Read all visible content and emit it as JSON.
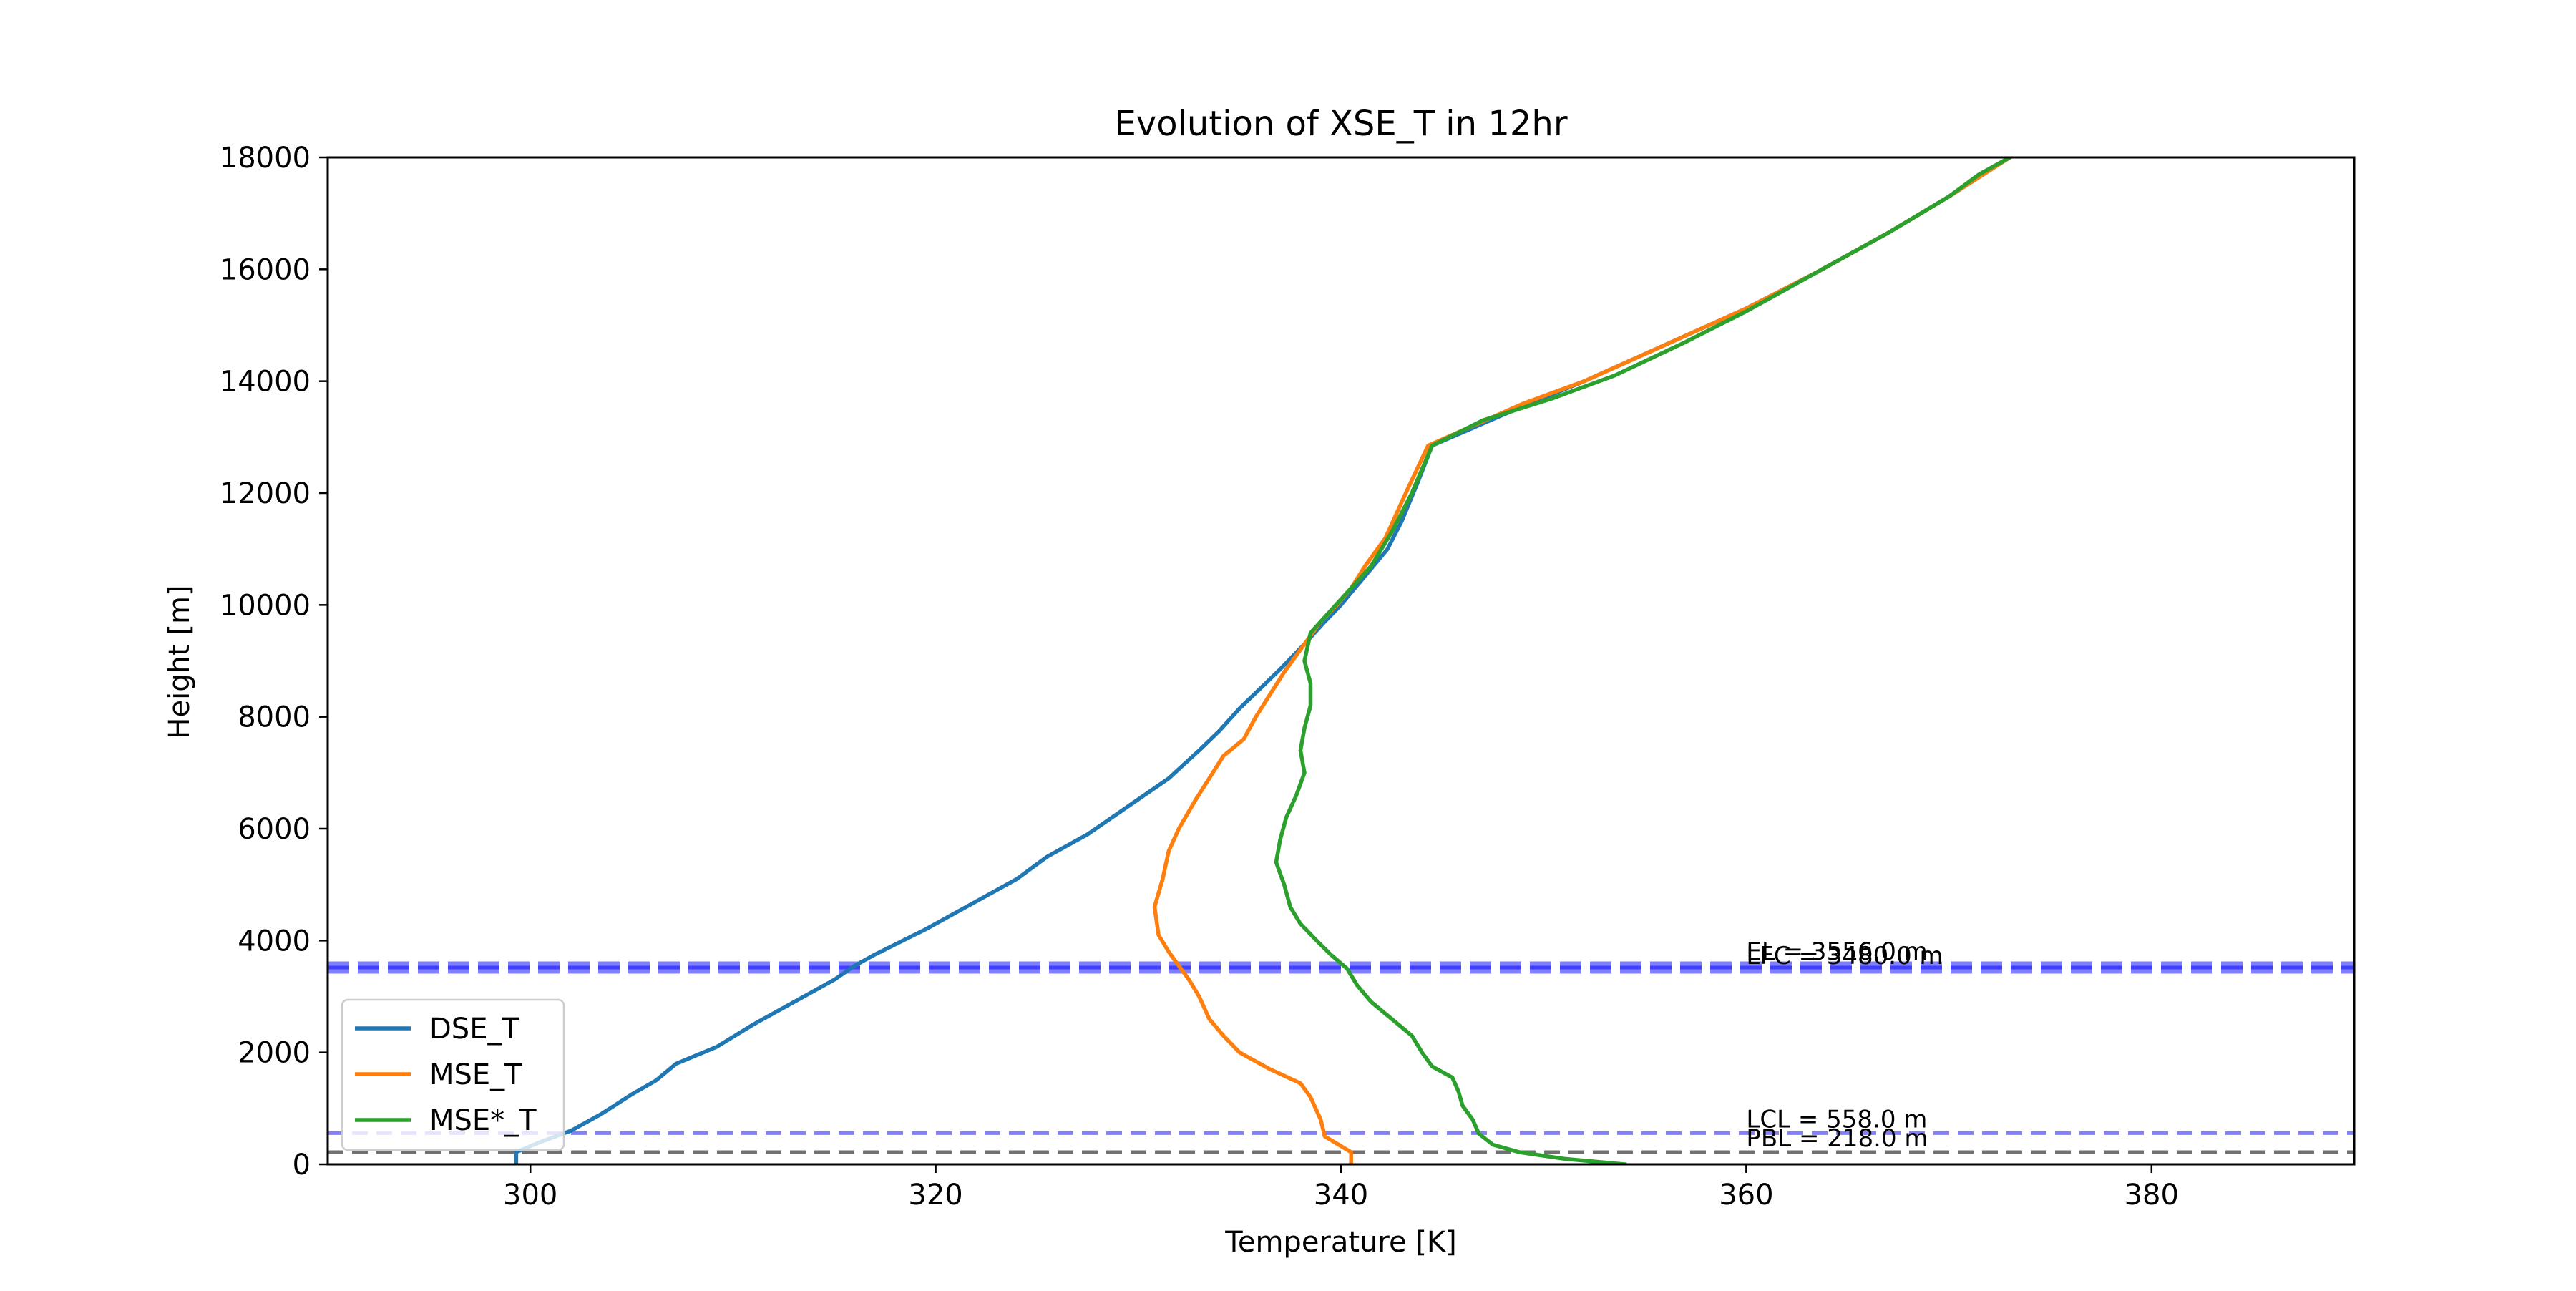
{
  "chart_data": {
    "type": "line",
    "title": "Evolution of XSE_T in 12hr",
    "xlabel": "Temperature [K]",
    "ylabel": "Height [m]",
    "xlim": [
      290,
      390
    ],
    "ylim": [
      0,
      18000
    ],
    "xticks": [
      300,
      320,
      340,
      360,
      380
    ],
    "yticks": [
      0,
      2000,
      4000,
      6000,
      8000,
      10000,
      12000,
      14000,
      16000,
      18000
    ],
    "grid": false,
    "legend_position": "lower left",
    "series": [
      {
        "name": "DSE_T",
        "color": "#1f77b4",
        "points": [
          [
            299.3,
            0
          ],
          [
            299.3,
            218
          ],
          [
            300.5,
            400
          ],
          [
            302.0,
            600
          ],
          [
            303.5,
            900
          ],
          [
            305.0,
            1250
          ],
          [
            306.2,
            1500
          ],
          [
            307.2,
            1800
          ],
          [
            309.2,
            2100
          ],
          [
            311.0,
            2500
          ],
          [
            313.0,
            2900
          ],
          [
            315.0,
            3300
          ],
          [
            316.0,
            3550
          ],
          [
            317.0,
            3750
          ],
          [
            319.5,
            4200
          ],
          [
            322.0,
            4700
          ],
          [
            324.0,
            5100
          ],
          [
            325.5,
            5500
          ],
          [
            327.5,
            5900
          ],
          [
            329.5,
            6400
          ],
          [
            331.5,
            6900
          ],
          [
            333.0,
            7400
          ],
          [
            334.0,
            7750
          ],
          [
            335.0,
            8150
          ],
          [
            336.0,
            8500
          ],
          [
            337.0,
            8850
          ],
          [
            338.2,
            9300
          ],
          [
            339.2,
            9700
          ],
          [
            340.0,
            10000
          ],
          [
            340.8,
            10350
          ],
          [
            341.5,
            10650
          ],
          [
            342.3,
            11000
          ],
          [
            343.0,
            11500
          ],
          [
            343.8,
            12200
          ],
          [
            344.5,
            12850
          ],
          [
            348.0,
            13400
          ],
          [
            352.0,
            14000
          ],
          [
            356.0,
            14650
          ],
          [
            360.0,
            15300
          ],
          [
            363.5,
            15950
          ],
          [
            367.0,
            16650
          ],
          [
            370.0,
            17300
          ],
          [
            373.0,
            18000
          ]
        ]
      },
      {
        "name": "MSE_T",
        "color": "#ff7f0e",
        "points": [
          [
            340.5,
            0
          ],
          [
            340.5,
            218
          ],
          [
            339.2,
            500
          ],
          [
            339.0,
            800
          ],
          [
            338.5,
            1200
          ],
          [
            338.0,
            1450
          ],
          [
            336.5,
            1700
          ],
          [
            335.0,
            2000
          ],
          [
            334.2,
            2300
          ],
          [
            333.5,
            2600
          ],
          [
            333.0,
            3000
          ],
          [
            332.5,
            3300
          ],
          [
            332.0,
            3550
          ],
          [
            331.5,
            3800
          ],
          [
            331.0,
            4100
          ],
          [
            330.8,
            4600
          ],
          [
            331.2,
            5100
          ],
          [
            331.5,
            5600
          ],
          [
            332.0,
            6000
          ],
          [
            332.8,
            6500
          ],
          [
            333.5,
            6900
          ],
          [
            334.2,
            7300
          ],
          [
            335.2,
            7600
          ],
          [
            335.8,
            8000
          ],
          [
            336.5,
            8400
          ],
          [
            337.2,
            8800
          ],
          [
            338.2,
            9300
          ],
          [
            339.0,
            9700
          ],
          [
            339.8,
            10000
          ],
          [
            340.5,
            10300
          ],
          [
            341.2,
            10700
          ],
          [
            342.2,
            11200
          ],
          [
            343.2,
            12000
          ],
          [
            344.3,
            12850
          ],
          [
            349.0,
            13600
          ],
          [
            352.0,
            14000
          ],
          [
            356.0,
            14650
          ],
          [
            360.0,
            15300
          ],
          [
            363.5,
            15950
          ],
          [
            367.0,
            16650
          ],
          [
            370.0,
            17300
          ],
          [
            373.0,
            18000
          ]
        ]
      },
      {
        "name": "MSE*_T",
        "color": "#2ca02c",
        "points": [
          [
            354.0,
            0
          ],
          [
            351.0,
            100
          ],
          [
            348.8,
            218
          ],
          [
            347.5,
            350
          ],
          [
            346.8,
            550
          ],
          [
            346.5,
            800
          ],
          [
            346.0,
            1050
          ],
          [
            345.8,
            1300
          ],
          [
            345.5,
            1550
          ],
          [
            344.5,
            1750
          ],
          [
            344.0,
            2000
          ],
          [
            343.5,
            2300
          ],
          [
            342.5,
            2600
          ],
          [
            341.5,
            2900
          ],
          [
            340.8,
            3200
          ],
          [
            340.3,
            3500
          ],
          [
            339.5,
            3750
          ],
          [
            338.8,
            4000
          ],
          [
            338.0,
            4300
          ],
          [
            337.5,
            4600
          ],
          [
            337.2,
            5000
          ],
          [
            336.8,
            5400
          ],
          [
            337.0,
            5800
          ],
          [
            337.3,
            6200
          ],
          [
            337.8,
            6600
          ],
          [
            338.2,
            7000
          ],
          [
            338.0,
            7400
          ],
          [
            338.2,
            7800
          ],
          [
            338.5,
            8200
          ],
          [
            338.5,
            8600
          ],
          [
            338.2,
            9000
          ],
          [
            338.5,
            9500
          ],
          [
            339.5,
            9900
          ],
          [
            340.5,
            10300
          ],
          [
            341.5,
            10700
          ],
          [
            342.5,
            11300
          ],
          [
            343.5,
            12000
          ],
          [
            344.5,
            12850
          ],
          [
            347.0,
            13300
          ],
          [
            350.5,
            13700
          ],
          [
            353.5,
            14100
          ],
          [
            357.0,
            14700
          ],
          [
            360.0,
            15250
          ],
          [
            363.5,
            15950
          ],
          [
            367.0,
            16650
          ],
          [
            370.0,
            17300
          ],
          [
            371.5,
            17700
          ],
          [
            373.0,
            18000
          ]
        ]
      }
    ],
    "reference_lines": [
      {
        "label": "PBL = 218.0 m",
        "y": 218,
        "color": "#404040",
        "alpha": 0.75,
        "weight": "thin"
      },
      {
        "label": "LCL = 558.0 m",
        "y": 558,
        "color": "#0000ff",
        "alpha": 0.5,
        "weight": "thin"
      },
      {
        "label": "LFC = 3480.0 m",
        "y": 3480,
        "color": "#0000ff",
        "alpha": 0.5,
        "weight": "thick"
      },
      {
        "label": "EL = 3556.0 m",
        "y": 3556,
        "color": "#0000ff",
        "alpha": 0.5,
        "weight": "thick"
      }
    ]
  }
}
